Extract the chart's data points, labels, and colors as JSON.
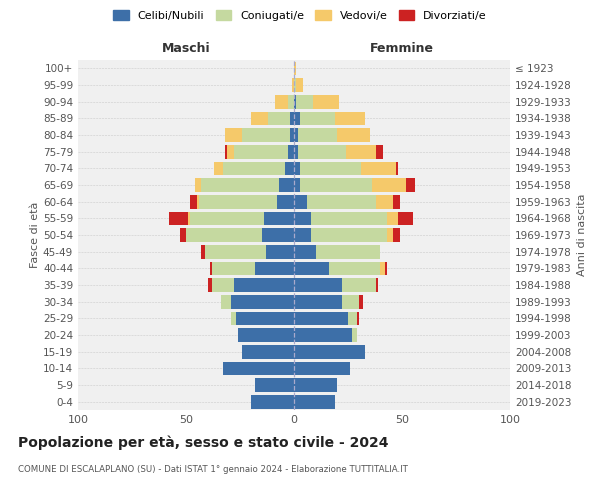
{
  "age_groups": [
    "0-4",
    "5-9",
    "10-14",
    "15-19",
    "20-24",
    "25-29",
    "30-34",
    "35-39",
    "40-44",
    "45-49",
    "50-54",
    "55-59",
    "60-64",
    "65-69",
    "70-74",
    "75-79",
    "80-84",
    "85-89",
    "90-94",
    "95-99",
    "100+"
  ],
  "birth_years": [
    "2019-2023",
    "2014-2018",
    "2009-2013",
    "2004-2008",
    "1999-2003",
    "1994-1998",
    "1989-1993",
    "1984-1988",
    "1979-1983",
    "1974-1978",
    "1969-1973",
    "1964-1968",
    "1959-1963",
    "1954-1958",
    "1949-1953",
    "1944-1948",
    "1939-1943",
    "1934-1938",
    "1929-1933",
    "1924-1928",
    "≤ 1923"
  ],
  "colors": {
    "celibi": "#3d6fa8",
    "coniugati": "#c5d9a0",
    "vedovi": "#f5c96a",
    "divorziati": "#cc2222"
  },
  "males": {
    "celibi": [
      20,
      18,
      33,
      24,
      26,
      27,
      29,
      28,
      18,
      13,
      15,
      14,
      8,
      7,
      4,
      3,
      2,
      2,
      0,
      0,
      0
    ],
    "coniugati": [
      0,
      0,
      0,
      0,
      0,
      2,
      5,
      10,
      20,
      28,
      35,
      34,
      36,
      36,
      29,
      25,
      22,
      10,
      3,
      0,
      0
    ],
    "vedovi": [
      0,
      0,
      0,
      0,
      0,
      0,
      0,
      0,
      0,
      0,
      0,
      1,
      1,
      3,
      4,
      3,
      8,
      8,
      6,
      1,
      0
    ],
    "divorziati": [
      0,
      0,
      0,
      0,
      0,
      0,
      0,
      2,
      1,
      2,
      3,
      9,
      3,
      0,
      0,
      1,
      0,
      0,
      0,
      0,
      0
    ]
  },
  "females": {
    "celibi": [
      19,
      20,
      26,
      33,
      27,
      25,
      22,
      22,
      16,
      10,
      8,
      8,
      6,
      3,
      3,
      2,
      2,
      3,
      1,
      0,
      0
    ],
    "coniugati": [
      0,
      0,
      0,
      0,
      2,
      4,
      8,
      16,
      24,
      30,
      35,
      35,
      32,
      33,
      28,
      22,
      18,
      16,
      8,
      1,
      0
    ],
    "vedovi": [
      0,
      0,
      0,
      0,
      0,
      0,
      0,
      0,
      2,
      0,
      3,
      5,
      8,
      16,
      16,
      14,
      15,
      14,
      12,
      3,
      1
    ],
    "divorziati": [
      0,
      0,
      0,
      0,
      0,
      1,
      2,
      1,
      1,
      0,
      3,
      7,
      3,
      4,
      1,
      3,
      0,
      0,
      0,
      0,
      0
    ]
  },
  "title": "Popolazione per età, sesso e stato civile - 2024",
  "subtitle": "COMUNE DI ESCALAPLANO (SU) - Dati ISTAT 1° gennaio 2024 - Elaborazione TUTTITALIA.IT",
  "xlabel_left": "Maschi",
  "xlabel_right": "Femmine",
  "ylabel_left": "Fasce di età",
  "ylabel_right": "Anni di nascita",
  "xlim": 100,
  "bg_color": "#ffffff",
  "plot_bg": "#f0f0f0",
  "legend_labels": [
    "Celibi/Nubili",
    "Coniugati/e",
    "Vedovi/e",
    "Divorziati/e"
  ]
}
